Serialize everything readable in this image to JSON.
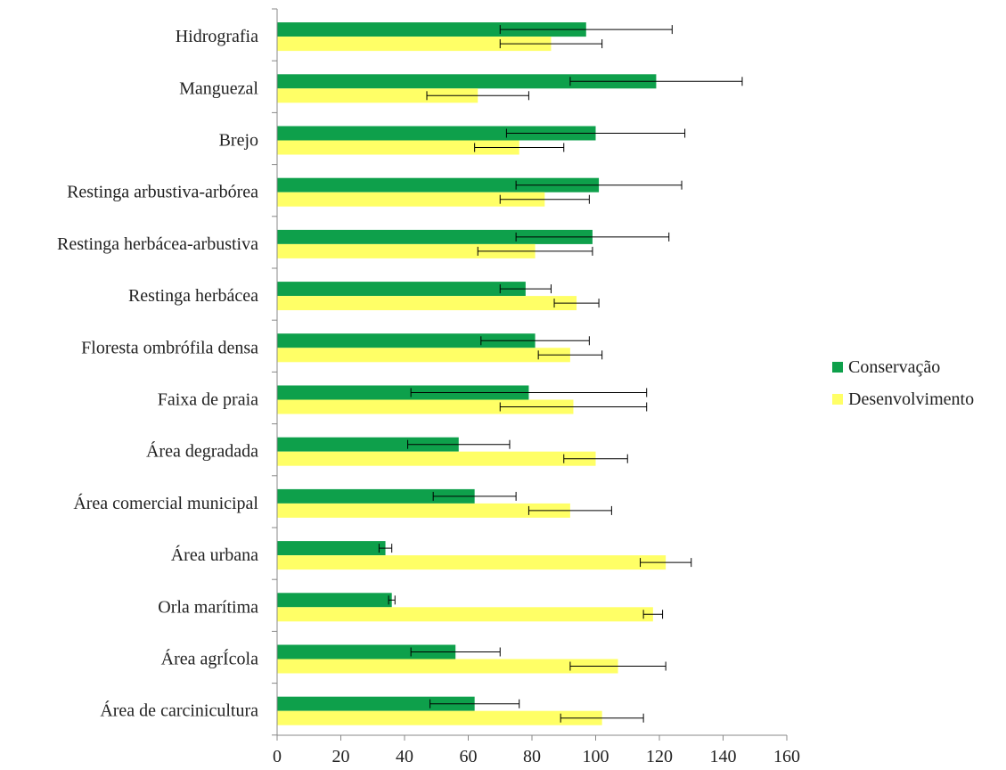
{
  "chart_data": {
    "type": "bar",
    "orientation": "horizontal",
    "categories": [
      "Hidrografia",
      "Manguezal",
      "Brejo",
      "Restinga arbustiva-arbórea",
      "Restinga herbácea-arbustiva",
      "Restinga herbácea",
      "Floresta ombrófila densa",
      "Faixa de praia",
      "Área degradada",
      "Área comercial municipal",
      "Área urbana",
      "Orla marítima",
      "Área agrÍcola",
      "Área de carcinicultura"
    ],
    "series": [
      {
        "name": "Conservação",
        "color": "#0ea04b",
        "values": [
          97,
          119,
          100,
          101,
          99,
          78,
          81,
          79,
          57,
          62,
          34,
          36,
          56,
          62
        ],
        "errors": [
          27,
          27,
          28,
          26,
          24,
          8,
          17,
          37,
          16,
          13,
          2,
          1,
          14,
          14
        ]
      },
      {
        "name": "Desenvolvimento",
        "color": "#ffff66",
        "values": [
          86,
          63,
          76,
          84,
          81,
          94,
          92,
          93,
          100,
          92,
          122,
          118,
          107,
          102
        ],
        "errors": [
          16,
          16,
          14,
          14,
          18,
          7,
          10,
          23,
          10,
          13,
          8,
          3,
          15,
          13
        ]
      }
    ],
    "xlim": [
      0,
      160
    ],
    "xticks": [
      0,
      20,
      40,
      60,
      80,
      100,
      120,
      140,
      160
    ],
    "title": "",
    "xlabel": "",
    "ylabel": "",
    "grid": false,
    "legend_position": "right"
  }
}
